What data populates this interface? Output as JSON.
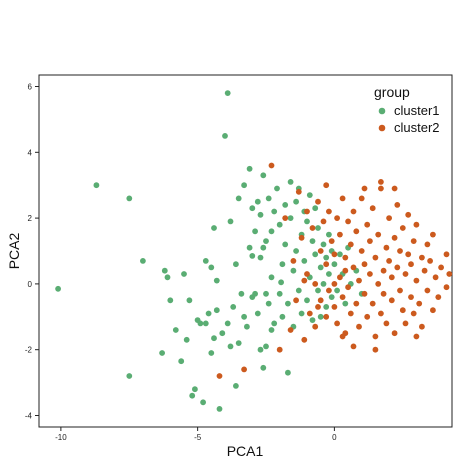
{
  "chart_data": {
    "type": "scatter",
    "title": "",
    "xlabel": "PCA1",
    "ylabel": "PCA2",
    "xlim": [
      -10.8,
      4.3
    ],
    "ylim": [
      -4.35,
      6.35
    ],
    "xticks": [
      -10,
      -5,
      0
    ],
    "yticks": [
      -4,
      -2,
      0,
      2,
      4,
      6
    ],
    "grid": false,
    "legend": {
      "title": "group",
      "position": "top-right"
    },
    "colors": {
      "cluster1": "#5aad73",
      "cluster2": "#cc5a1e"
    },
    "series": [
      {
        "name": "cluster1",
        "color": "#5aad73",
        "points": [
          [
            -10.1,
            -0.15
          ],
          [
            -8.7,
            3.0
          ],
          [
            -7.5,
            2.6
          ],
          [
            -7.5,
            -2.8
          ],
          [
            -7.0,
            0.7
          ],
          [
            -6.3,
            -2.1
          ],
          [
            -6.2,
            0.4
          ],
          [
            -6.1,
            0.2
          ],
          [
            -6.0,
            -0.5
          ],
          [
            -5.8,
            -1.4
          ],
          [
            -5.6,
            -2.35
          ],
          [
            -5.5,
            0.3
          ],
          [
            -5.4,
            -1.7
          ],
          [
            -5.2,
            -3.4
          ],
          [
            -5.1,
            -3.2
          ],
          [
            -5.0,
            -1.1
          ],
          [
            -4.9,
            -1.2
          ],
          [
            -4.8,
            -3.6
          ],
          [
            -4.7,
            -1.2
          ],
          [
            -4.7,
            0.7
          ],
          [
            -4.6,
            -0.9
          ],
          [
            -4.5,
            -2.1
          ],
          [
            -4.5,
            0.5
          ],
          [
            -4.4,
            1.7
          ],
          [
            -4.3,
            -0.8
          ],
          [
            -4.2,
            -3.8
          ],
          [
            -4.1,
            -1.5
          ],
          [
            -4.0,
            4.5
          ],
          [
            -3.9,
            -1.2
          ],
          [
            -3.9,
            5.8
          ],
          [
            -3.8,
            -1.9
          ],
          [
            -3.8,
            1.9
          ],
          [
            -3.7,
            -0.7
          ],
          [
            -3.6,
            0.6
          ],
          [
            -3.5,
            -1.8
          ],
          [
            -3.5,
            2.6
          ],
          [
            -3.4,
            -0.3
          ],
          [
            -3.3,
            3.0
          ],
          [
            -3.3,
            -1.0
          ],
          [
            -3.2,
            -1.3
          ],
          [
            -3.1,
            3.5
          ],
          [
            -3.1,
            1.1
          ],
          [
            -3.0,
            -0.4
          ],
          [
            -3.0,
            2.3
          ],
          [
            -2.9,
            -0.3
          ],
          [
            -2.9,
            1.6
          ],
          [
            -2.8,
            2.5
          ],
          [
            -2.8,
            -0.9
          ],
          [
            -2.7,
            0.8
          ],
          [
            -2.7,
            2.1
          ],
          [
            -2.7,
            -2.0
          ],
          [
            -2.6,
            1.1
          ],
          [
            -2.6,
            3.3
          ],
          [
            -2.5,
            -0.3
          ],
          [
            -2.5,
            1.3
          ],
          [
            -2.5,
            -1.9
          ],
          [
            -2.4,
            2.6
          ],
          [
            -2.4,
            -0.6
          ],
          [
            -2.3,
            1.6
          ],
          [
            -2.3,
            0.2
          ],
          [
            -2.2,
            2.2
          ],
          [
            -2.2,
            -1.2
          ],
          [
            -2.1,
            2.9
          ],
          [
            -2.0,
            1.8
          ],
          [
            -2.0,
            -0.3
          ],
          [
            -1.9,
            0.6
          ],
          [
            -1.9,
            -1.0
          ],
          [
            -1.8,
            2.4
          ],
          [
            -1.8,
            1.2
          ],
          [
            -1.7,
            -0.6
          ],
          [
            -1.7,
            -2.7
          ],
          [
            -1.6,
            3.1
          ],
          [
            -1.6,
            2.0
          ],
          [
            -1.5,
            0.4
          ],
          [
            -1.5,
            -1.3
          ],
          [
            -1.4,
            2.5
          ],
          [
            -1.4,
            1.0
          ],
          [
            -1.3,
            -0.2
          ],
          [
            -1.3,
            2.9
          ],
          [
            -1.2,
            1.5
          ],
          [
            -1.2,
            -0.9
          ],
          [
            -1.1,
            2.2
          ],
          [
            -1.1,
            0.7
          ],
          [
            -1.0,
            -0.5
          ],
          [
            -1.0,
            1.9
          ],
          [
            -0.9,
            2.7
          ],
          [
            -0.9,
            0.2
          ],
          [
            -0.8,
            1.3
          ],
          [
            -0.8,
            -1.1
          ],
          [
            -0.7,
            2.3
          ],
          [
            -0.7,
            0.9
          ],
          [
            -0.6,
            -0.2
          ],
          [
            -0.6,
            1.7
          ],
          [
            -0.5,
            0.5
          ],
          [
            -0.5,
            -1.0
          ],
          [
            -0.4,
            1.2
          ],
          [
            -0.4,
            0.0
          ],
          [
            -0.3,
            0.8
          ],
          [
            -0.3,
            -0.7
          ],
          [
            -0.2,
            1.5
          ],
          [
            -0.2,
            0.3
          ],
          [
            -0.1,
            -0.4
          ],
          [
            -0.1,
            1.0
          ],
          [
            0.0,
            0.6
          ],
          [
            0.1,
            -0.2
          ],
          [
            0.2,
            0.9
          ],
          [
            0.3,
            0.3
          ],
          [
            0.4,
            -0.6
          ],
          [
            0.5,
            1.1
          ],
          [
            0.6,
            0.0
          ],
          [
            0.8,
            0.4
          ],
          [
            1.0,
            -0.3
          ],
          [
            -2.6,
            -2.55
          ],
          [
            -3.6,
            -3.1
          ],
          [
            -2.3,
            -1.4
          ],
          [
            -1.95,
            0.05
          ],
          [
            -3.0,
            0.85
          ],
          [
            -4.3,
            0.1
          ],
          [
            -5.3,
            -0.5
          ],
          [
            -4.4,
            -1.65
          ]
        ]
      },
      {
        "name": "cluster2",
        "color": "#cc5a1e",
        "points": [
          [
            -4.2,
            -2.8
          ],
          [
            -3.3,
            -2.6
          ],
          [
            -2.3,
            3.6
          ],
          [
            -2.0,
            -2.0
          ],
          [
            -1.8,
            2.0
          ],
          [
            -1.6,
            -1.4
          ],
          [
            -1.5,
            0.7
          ],
          [
            -1.4,
            -0.5
          ],
          [
            -1.3,
            2.8
          ],
          [
            -1.2,
            1.4
          ],
          [
            -1.1,
            -1.7
          ],
          [
            -1.0,
            0.3
          ],
          [
            -1.0,
            2.2
          ],
          [
            -0.9,
            -0.9
          ],
          [
            -0.8,
            1.7
          ],
          [
            -0.7,
            0.0
          ],
          [
            -0.7,
            -1.3
          ],
          [
            -0.6,
            2.5
          ],
          [
            -0.5,
            1.0
          ],
          [
            -0.5,
            -0.5
          ],
          [
            -0.4,
            1.9
          ],
          [
            -0.3,
            -1.0
          ],
          [
            -0.3,
            0.6
          ],
          [
            -0.2,
            2.2
          ],
          [
            -0.2,
            -0.2
          ],
          [
            -0.1,
            1.3
          ],
          [
            0.0,
            -0.7
          ],
          [
            0.0,
            0.9
          ],
          [
            0.1,
            2.0
          ],
          [
            0.1,
            -1.2
          ],
          [
            0.2,
            0.2
          ],
          [
            0.2,
            1.5
          ],
          [
            0.3,
            -0.4
          ],
          [
            0.3,
            2.6
          ],
          [
            0.4,
            0.8
          ],
          [
            0.4,
            -1.5
          ],
          [
            0.5,
            1.9
          ],
          [
            0.5,
            -0.1
          ],
          [
            0.6,
            1.2
          ],
          [
            0.6,
            -0.9
          ],
          [
            0.7,
            0.5
          ],
          [
            0.7,
            2.2
          ],
          [
            0.8,
            -0.6
          ],
          [
            0.8,
            1.6
          ],
          [
            0.9,
            0.1
          ],
          [
            0.9,
            -1.3
          ],
          [
            1.0,
            1.0
          ],
          [
            1.0,
            2.6
          ],
          [
            1.1,
            -0.3
          ],
          [
            1.1,
            0.6
          ],
          [
            1.2,
            1.8
          ],
          [
            1.2,
            -1.0
          ],
          [
            1.3,
            0.3
          ],
          [
            1.3,
            1.3
          ],
          [
            1.4,
            -0.6
          ],
          [
            1.4,
            2.3
          ],
          [
            1.5,
            0.8
          ],
          [
            1.5,
            -1.6
          ],
          [
            1.6,
            0.0
          ],
          [
            1.6,
            1.5
          ],
          [
            1.7,
            -0.9
          ],
          [
            1.7,
            2.9
          ],
          [
            1.8,
            0.4
          ],
          [
            1.8,
            -0.3
          ],
          [
            1.9,
            1.1
          ],
          [
            1.9,
            -1.2
          ],
          [
            2.0,
            0.7
          ],
          [
            2.0,
            2.0
          ],
          [
            2.1,
            -0.5
          ],
          [
            2.1,
            0.2
          ],
          [
            2.2,
            1.4
          ],
          [
            2.2,
            -1.5
          ],
          [
            2.3,
            0.5
          ],
          [
            2.3,
            2.4
          ],
          [
            2.4,
            -0.2
          ],
          [
            2.4,
            1.0
          ],
          [
            2.5,
            -0.8
          ],
          [
            2.5,
            1.7
          ],
          [
            2.6,
            0.3
          ],
          [
            2.6,
            -1.2
          ],
          [
            2.7,
            0.9
          ],
          [
            2.7,
            2.1
          ],
          [
            2.8,
            -0.4
          ],
          [
            2.8,
            0.6
          ],
          [
            2.9,
            1.3
          ],
          [
            2.9,
            -0.9
          ],
          [
            3.0,
            0.1
          ],
          [
            3.0,
            1.8
          ],
          [
            3.1,
            -0.6
          ],
          [
            3.2,
            0.8
          ],
          [
            3.2,
            -1.3
          ],
          [
            3.3,
            0.4
          ],
          [
            3.4,
            1.2
          ],
          [
            3.4,
            -0.2
          ],
          [
            3.5,
            0.7
          ],
          [
            3.6,
            -0.8
          ],
          [
            3.6,
            1.5
          ],
          [
            3.7,
            0.2
          ],
          [
            3.8,
            -0.4
          ],
          [
            3.9,
            0.5
          ],
          [
            4.1,
            -0.1
          ],
          [
            4.2,
            0.3
          ],
          [
            4.1,
            0.9
          ],
          [
            3.0,
            -1.6
          ],
          [
            2.2,
            2.9
          ],
          [
            1.1,
            2.9
          ],
          [
            1.7,
            3.1
          ],
          [
            -0.3,
            3.0
          ],
          [
            0.7,
            -1.9
          ],
          [
            1.5,
            -2.0
          ],
          [
            0.3,
            -1.6
          ],
          [
            -0.6,
            -0.7
          ],
          [
            -1.1,
            0.1
          ],
          [
            0.0,
            0.0
          ],
          [
            0.4,
            0.4
          ]
        ]
      }
    ]
  }
}
